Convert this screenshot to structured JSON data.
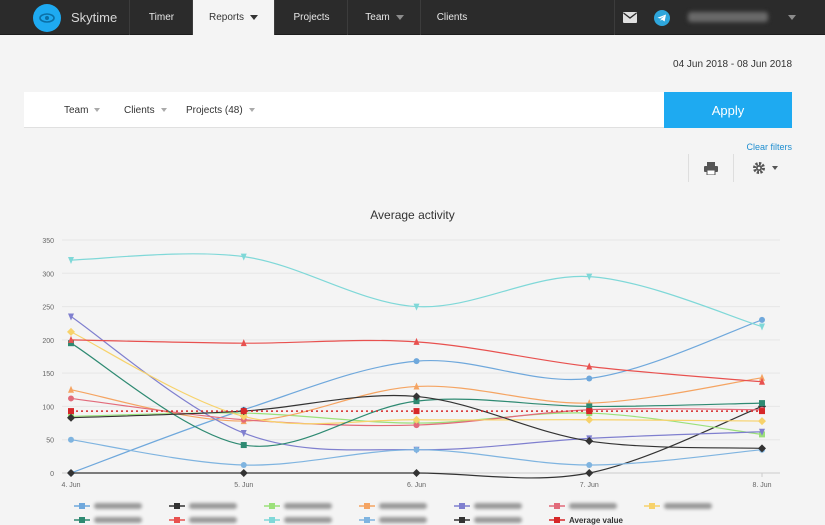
{
  "nav": {
    "brand": "Skytime",
    "items": [
      {
        "label": "Timer",
        "active": false,
        "dropdown": false
      },
      {
        "label": "Reports",
        "active": true,
        "dropdown": true
      },
      {
        "label": "Projects",
        "active": false,
        "dropdown": false
      },
      {
        "label": "Team",
        "active": false,
        "dropdown": true
      },
      {
        "label": "Clients",
        "active": false,
        "dropdown": false
      }
    ],
    "icons": [
      "mail-icon",
      "telegram-icon"
    ]
  },
  "date_range": "04 Jun 2018 - 08 Jun 2018",
  "filters": {
    "team": "Team",
    "clients": "Clients",
    "projects": "Projects (48)",
    "apply": "Apply",
    "clear": "Clear filters"
  },
  "colors": {
    "accent": "#1eaaf1",
    "navbar": "#2b2b2b"
  },
  "chart_data": {
    "type": "line",
    "title": "Average activity",
    "categories": [
      "4. Jun",
      "5. Jun",
      "6. Jun",
      "7. Jun",
      "8. Jun"
    ],
    "ylim": [
      0,
      350
    ],
    "yticks": [
      0,
      50,
      100,
      150,
      200,
      250,
      300,
      350
    ],
    "grid": true,
    "legend_position": "bottom",
    "series": [
      {
        "color": "#6fa8dc",
        "marker": "circle",
        "values": [
          0,
          95,
          168,
          142,
          230
        ]
      },
      {
        "color": "#333333",
        "marker": "diamond",
        "values": [
          0,
          0,
          0,
          0,
          100
        ]
      },
      {
        "color": "#9be07a",
        "marker": "square",
        "values": [
          85,
          90,
          75,
          90,
          58
        ]
      },
      {
        "color": "#f5a462",
        "marker": "triangle",
        "values": [
          125,
          78,
          130,
          105,
          143
        ]
      },
      {
        "color": "#7f7fcf",
        "marker": "triangle-down",
        "values": [
          235,
          60,
          35,
          52,
          62
        ]
      },
      {
        "color": "#e26a7a",
        "marker": "circle",
        "values": [
          112,
          80,
          72,
          95,
          95
        ]
      },
      {
        "color": "#f7d26b",
        "marker": "diamond",
        "values": [
          212,
          85,
          80,
          80,
          78
        ]
      },
      {
        "color": "#2e8a72",
        "marker": "square",
        "values": [
          195,
          42,
          108,
          100,
          105
        ]
      },
      {
        "color": "#e8514f",
        "marker": "triangle",
        "values": [
          200,
          195,
          197,
          160,
          137
        ]
      },
      {
        "color": "#7fd8d8",
        "marker": "triangle-down",
        "values": [
          320,
          325,
          250,
          295,
          220
        ]
      },
      {
        "color": "#7fb4e0",
        "marker": "circle",
        "values": [
          50,
          12,
          35,
          12,
          35
        ]
      },
      {
        "color": "#333333",
        "marker": "diamond",
        "values": [
          83,
          93,
          115,
          48,
          37
        ]
      },
      {
        "name": "Average value",
        "color": "#d62728",
        "marker": "square",
        "dashed": true,
        "values": [
          93,
          93,
          93,
          93,
          93
        ]
      }
    ]
  }
}
